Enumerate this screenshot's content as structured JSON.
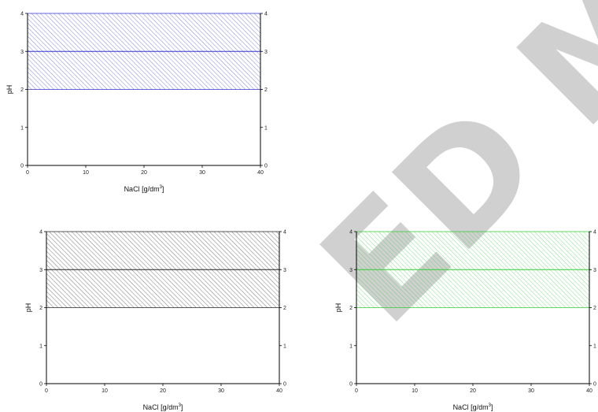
{
  "watermark_text": "ED MA",
  "chart_data": [
    {
      "type": "area",
      "xlabel": "NaCl [g/dm",
      "xlabel_sup": "3",
      "xlabel_suffix": "]",
      "ylabel": "pH",
      "xlim": [
        0,
        40
      ],
      "ylim": [
        0,
        4
      ],
      "x_ticks": [
        0,
        10,
        20,
        30,
        40
      ],
      "y_ticks": [
        0,
        1,
        2,
        3,
        4
      ],
      "right_axis_ticks": [
        0,
        1,
        2,
        3,
        4
      ],
      "band": {
        "y_low": 2,
        "y_high": 4,
        "x_from": 0,
        "x_to": 40,
        "pattern": "diagonal-hatch"
      },
      "line": {
        "y": 3
      },
      "color": "#3333cc",
      "grid": false
    },
    {
      "type": "area",
      "xlabel": "NaCl [g/dm",
      "xlabel_sup": "3",
      "xlabel_suffix": "]",
      "ylabel": "pH",
      "xlim": [
        0,
        40
      ],
      "ylim": [
        0,
        4
      ],
      "x_ticks": [
        0,
        10,
        20,
        30,
        40
      ],
      "y_ticks": [
        0,
        1,
        2,
        3,
        4
      ],
      "right_axis_ticks": [
        0,
        1,
        2,
        3,
        4
      ],
      "band": {
        "y_low": 2,
        "y_high": 4,
        "x_from": 0,
        "x_to": 40,
        "pattern": "diagonal-hatch"
      },
      "line": {
        "y": 3
      },
      "color": "#222222",
      "grid": false
    },
    {
      "type": "area",
      "xlabel": "NaCl [g/dm",
      "xlabel_sup": "3",
      "xlabel_suffix": "]",
      "ylabel": "pH",
      "xlim": [
        0,
        40
      ],
      "ylim": [
        0,
        4
      ],
      "x_ticks": [
        0,
        10,
        20,
        30,
        40
      ],
      "y_ticks": [
        0,
        1,
        2,
        3,
        4
      ],
      "right_axis_ticks": [
        0,
        1,
        2,
        3,
        4
      ],
      "band": {
        "y_low": 2,
        "y_high": 4,
        "x_from": 0,
        "x_to": 40,
        "pattern": "diagonal-hatch"
      },
      "line": {
        "y": 3
      },
      "color": "#33cc33",
      "grid": false
    }
  ]
}
